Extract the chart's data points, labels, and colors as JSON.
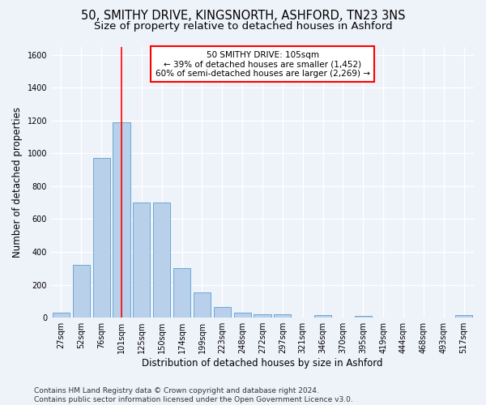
{
  "title_line1": "50, SMITHY DRIVE, KINGSNORTH, ASHFORD, TN23 3NS",
  "title_line2": "Size of property relative to detached houses in Ashford",
  "xlabel": "Distribution of detached houses by size in Ashford",
  "ylabel": "Number of detached properties",
  "categories": [
    "27sqm",
    "52sqm",
    "76sqm",
    "101sqm",
    "125sqm",
    "150sqm",
    "174sqm",
    "199sqm",
    "223sqm",
    "248sqm",
    "272sqm",
    "297sqm",
    "321sqm",
    "346sqm",
    "370sqm",
    "395sqm",
    "419sqm",
    "444sqm",
    "468sqm",
    "493sqm",
    "517sqm"
  ],
  "values": [
    30,
    320,
    970,
    1190,
    700,
    700,
    300,
    155,
    65,
    30,
    20,
    20,
    0,
    15,
    0,
    12,
    0,
    0,
    0,
    0,
    15
  ],
  "bar_color": "#b8d0ea",
  "bar_edge_color": "#5a9fd4",
  "vline_x_index": 3,
  "vline_color": "red",
  "annotation_line1": "50 SMITHY DRIVE: 105sqm",
  "annotation_line2": "← 39% of detached houses are smaller (1,452)",
  "annotation_line3": "60% of semi-detached houses are larger (2,269) →",
  "annotation_box_color": "white",
  "annotation_box_edge_color": "red",
  "ylim": [
    0,
    1650
  ],
  "yticks": [
    0,
    200,
    400,
    600,
    800,
    1000,
    1200,
    1400,
    1600
  ],
  "footer": "Contains HM Land Registry data © Crown copyright and database right 2024.\nContains public sector information licensed under the Open Government Licence v3.0.",
  "bg_color": "#eef2f9",
  "plot_bg_color": "#eef2f9",
  "grid_color": "white",
  "title_fontsize": 10.5,
  "subtitle_fontsize": 9.5,
  "axis_label_fontsize": 8.5,
  "tick_fontsize": 7,
  "annotation_fontsize": 7.5,
  "footer_fontsize": 6.5
}
